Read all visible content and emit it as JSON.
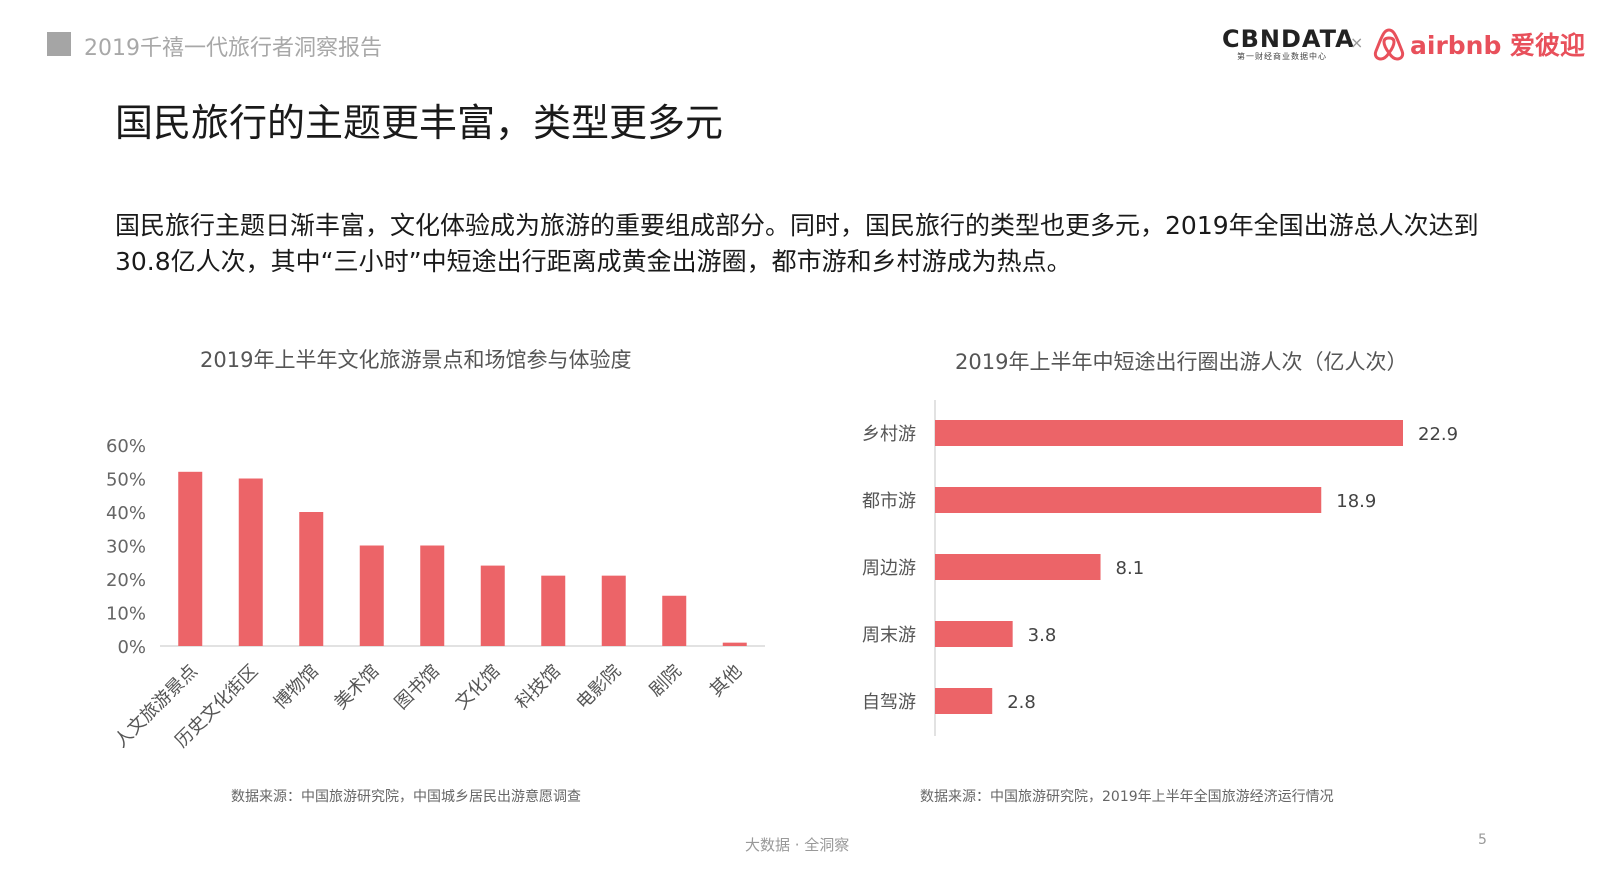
{
  "header": {
    "report_title": "2019千禧一代旅行者洞察报告",
    "logos": {
      "cbndata_main": "CBNDATA",
      "cbndata_sub": "第一财经商业数据中心",
      "separator": "×",
      "airbnb": "airbnb 爱彼迎"
    }
  },
  "page_heading": "国民旅行的主题更丰富，类型更多元",
  "intro_text": "国民旅行主题日渐丰富，文化体验成为旅游的重要组成部分。同时，国民旅行的类型也更多元，2019年全国出游总人次达到30.8亿人次，其中“三小时”中短途出行距离成黄金出游圈，都市游和乡村游成为热点。",
  "colors": {
    "bar": "#ec6468",
    "brand_red": "#e8505b"
  },
  "chart_data": [
    {
      "type": "bar",
      "title": "2019年上半年文化旅游景点和场馆参与体验度",
      "categories": [
        "人文旅游景点",
        "历史文化街区",
        "博物馆",
        "美术馆",
        "图书馆",
        "文化馆",
        "科技馆",
        "电影院",
        "剧院",
        "其他"
      ],
      "values": [
        52,
        50,
        40,
        30,
        30,
        24,
        21,
        21,
        15,
        1
      ],
      "unit": "%",
      "ylim": [
        0,
        60
      ],
      "yticks": [
        "0%",
        "10%",
        "20%",
        "30%",
        "40%",
        "50%",
        "60%"
      ],
      "grid": false,
      "source": "数据来源：中国旅游研究院，中国城乡居民出游意愿调查"
    },
    {
      "type": "bar",
      "orientation": "horizontal",
      "title": "2019年上半年中短途出行圈出游人次（亿人次）",
      "categories": [
        "乡村游",
        "都市游",
        "周边游",
        "周末游",
        "自驾游"
      ],
      "values": [
        22.9,
        18.9,
        8.1,
        3.8,
        2.8
      ],
      "value_labels": [
        "22.9",
        "18.9",
        "8.1",
        "3.8",
        "2.8"
      ],
      "grid": false,
      "source": "数据来源：中国旅游研究院，2019年上半年全国旅游经济运行情况"
    }
  ],
  "footer": {
    "brand": "大数据 · 全洞察",
    "page_number": "5"
  }
}
